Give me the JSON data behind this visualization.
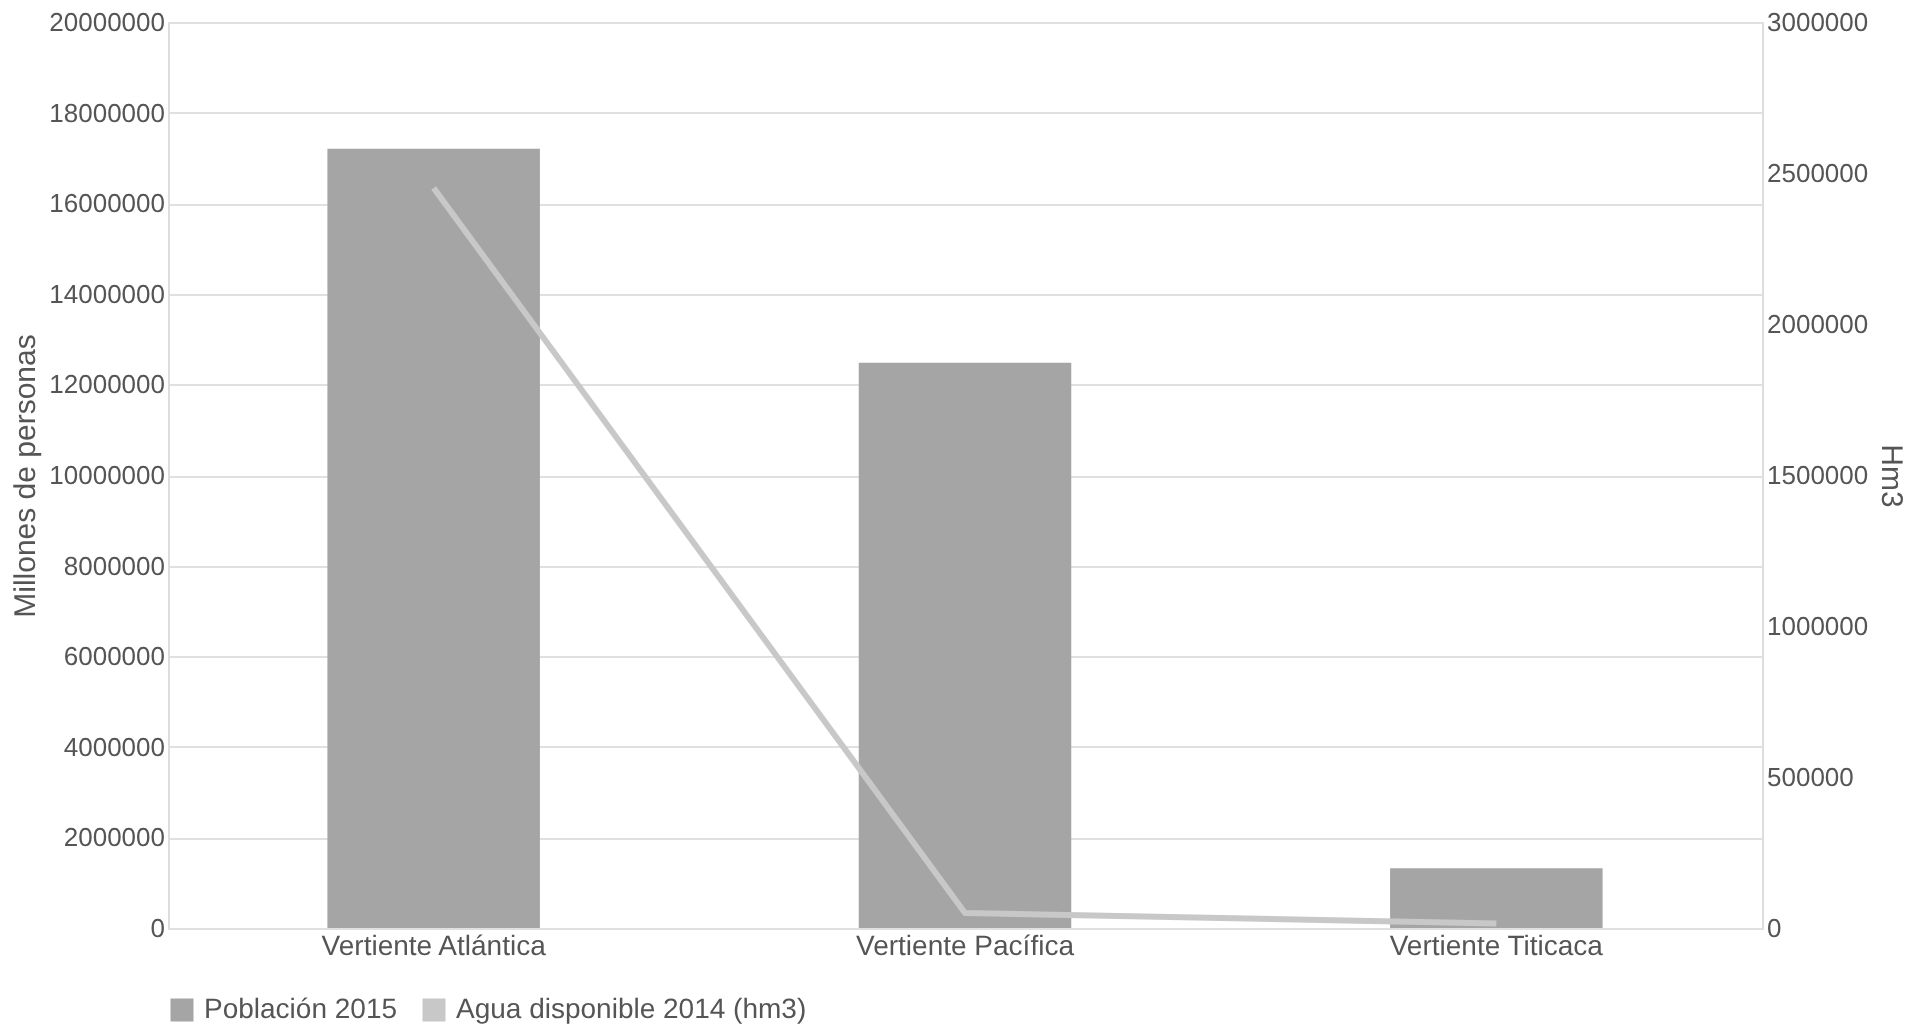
{
  "chart_data": {
    "type": "bar",
    "categories": [
      "Vertiente Atlántica",
      "Vertiente Pacífica",
      "Vertiente Titicaca"
    ],
    "ylabel": "Millones de personas",
    "y2label": "Hm3",
    "series": [
      {
        "name": "Población 2015",
        "color": "#a5a5a5",
        "values": [
          17200000,
          12480000,
          1320000
        ]
      },
      {
        "name": "Agua  disponible 2014 (hm3)",
        "type": "line",
        "axis": "y2",
        "color": "#c8c8c8",
        "values": [
          2450000,
          50000,
          15000
        ]
      }
    ],
    "ylim": [
      0,
      20000000
    ],
    "yticks": [
      0,
      2000000,
      4000000,
      6000000,
      8000000,
      10000000,
      12000000,
      14000000,
      16000000,
      18000000,
      20000000
    ],
    "y2lim": [
      0,
      3000000
    ],
    "y2ticks": [
      0,
      500000,
      1000000,
      1500000,
      2000000,
      2500000,
      3000000
    ],
    "grid": "y",
    "legend": "bottom",
    "marker": "none"
  }
}
